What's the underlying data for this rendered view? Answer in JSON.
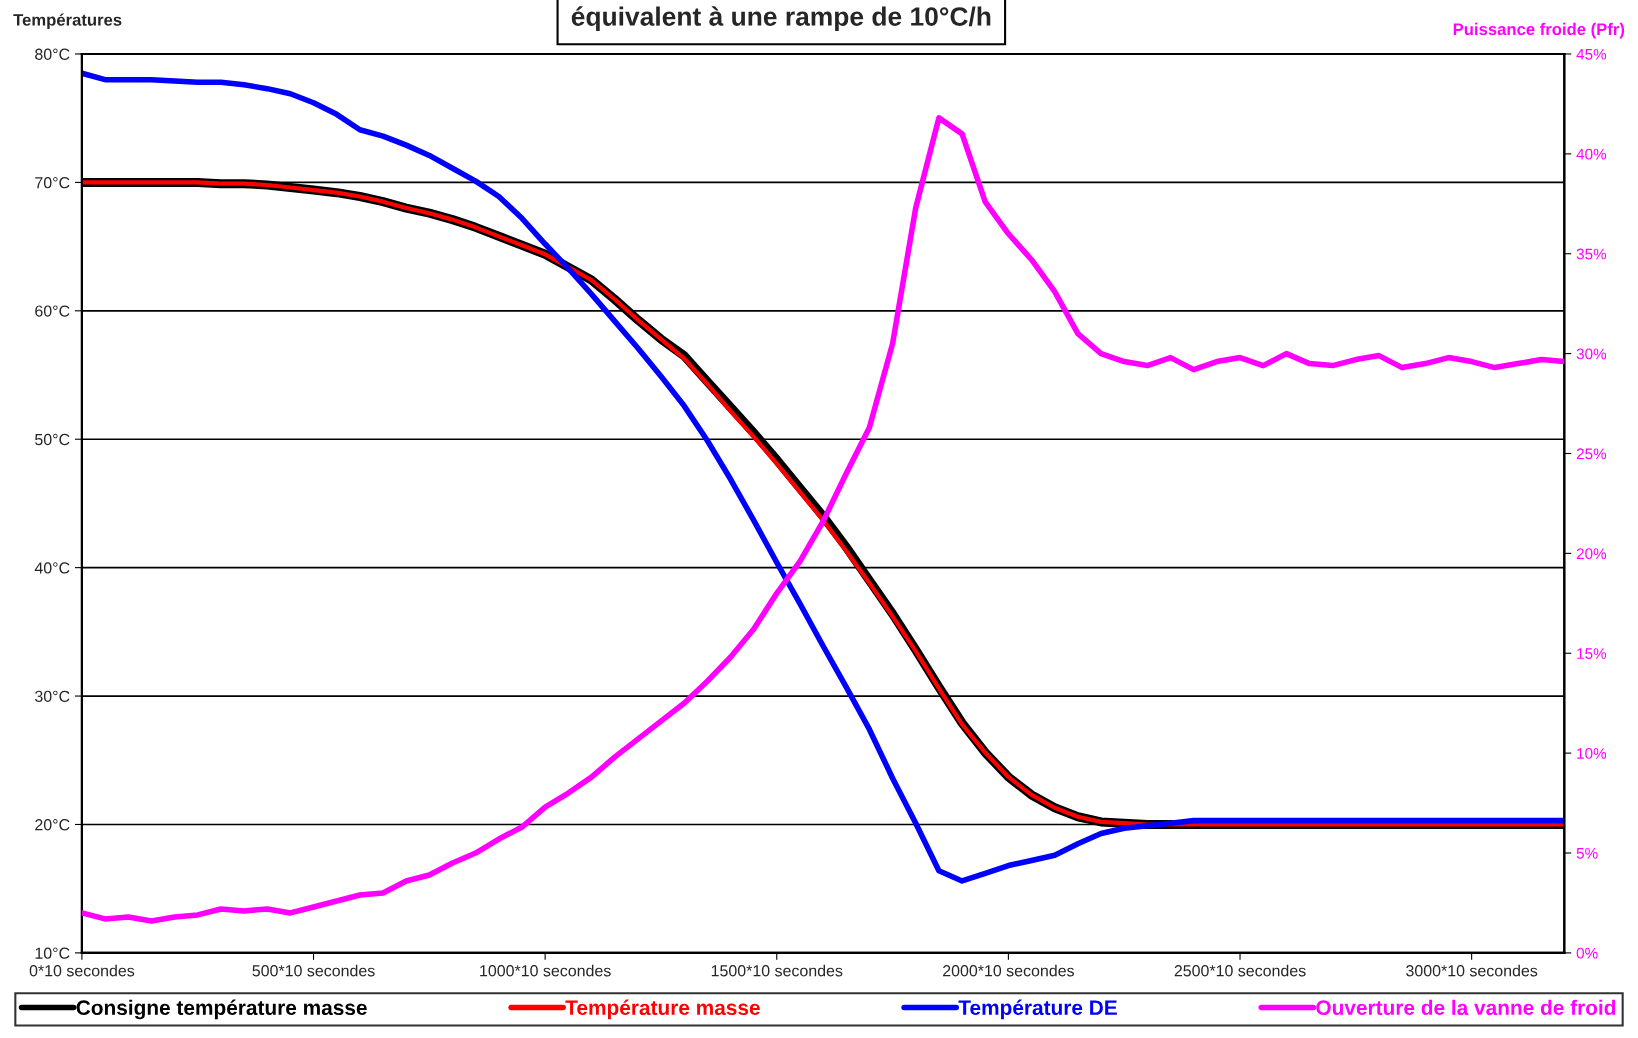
{
  "chart_data": {
    "type": "line",
    "title": "équivalent à une rampe de 10°C/h",
    "ylabel": "Températures",
    "y2label": "Puissance froide (Pfr)",
    "categories": [
      "0*10 secondes",
      null,
      null,
      null,
      null,
      null,
      null,
      null,
      null,
      null,
      "500*10 secondes",
      null,
      null,
      null,
      null,
      null,
      null,
      null,
      null,
      null,
      "1000*10 secondes",
      null,
      null,
      null,
      null,
      null,
      null,
      null,
      null,
      null,
      "1500*10 secondes",
      null,
      null,
      null,
      null,
      null,
      null,
      null,
      null,
      null,
      "2000*10 secondes",
      null,
      null,
      null,
      null,
      null,
      null,
      null,
      null,
      null,
      "2500*10 secondes",
      null,
      null,
      null,
      null,
      null,
      null,
      null,
      null,
      null,
      "3000*10 secondes",
      null,
      null,
      null,
      null
    ],
    "ylim": [
      10,
      80
    ],
    "yticks": [
      {
        "value": 10,
        "label": "10°C"
      },
      {
        "value": 20,
        "label": "20°C"
      },
      {
        "value": 30,
        "label": "30°C"
      },
      {
        "value": 40,
        "label": "40°C"
      },
      {
        "value": 50,
        "label": "50°C"
      },
      {
        "value": 60,
        "label": "60°C"
      },
      {
        "value": 70,
        "label": "70°C"
      },
      {
        "value": 80,
        "label": "80°C"
      }
    ],
    "y2lim": [
      0,
      45
    ],
    "y2ticks": [
      {
        "value": 0,
        "label": "0%"
      },
      {
        "value": 5,
        "label": "5%"
      },
      {
        "value": 10,
        "label": "10%"
      },
      {
        "value": 15,
        "label": "15%"
      },
      {
        "value": 20,
        "label": "20%"
      },
      {
        "value": 25,
        "label": "25%"
      },
      {
        "value": 30,
        "label": "30%"
      },
      {
        "value": 35,
        "label": "35%"
      },
      {
        "value": 40,
        "label": "40%"
      },
      {
        "value": 45,
        "label": "45%"
      }
    ],
    "grid": "y",
    "legend": "bottom",
    "marker": "none",
    "series": [
      {
        "name": "Consigne température masse",
        "color": "#000000",
        "values": [
          70,
          70,
          70,
          70,
          70,
          70,
          69.9,
          69.9,
          69.8,
          69.6,
          69.4,
          69.2,
          68.9,
          68.5,
          68.0,
          67.6,
          67.1,
          66.5,
          65.8,
          65.1,
          64.4,
          63.4,
          62.4,
          60.9,
          59.3,
          57.8,
          56.5,
          54.5,
          52.5,
          50.5,
          48.4,
          46.2,
          44.0,
          41.6,
          39.0,
          36.4,
          33.6,
          30.7,
          27.9,
          25.6,
          23.7,
          22.3,
          21.3,
          20.6,
          20.2,
          20.1,
          20,
          20,
          20,
          20,
          20,
          20,
          20,
          20,
          20,
          20,
          20,
          20,
          20,
          20,
          20,
          20,
          20,
          20,
          20
        ]
      },
      {
        "name": "Température masse",
        "color": "#ff0000",
        "values": [
          70,
          70,
          70,
          70,
          70,
          70,
          69.9,
          69.9,
          69.8,
          69.6,
          69.4,
          69.2,
          68.9,
          68.5,
          68.0,
          67.6,
          67.1,
          66.5,
          65.8,
          65.1,
          64.4,
          63.4,
          62.4,
          60.9,
          59.3,
          57.8,
          56.3,
          54.3,
          52.2,
          50.2,
          48.1,
          45.9,
          43.7,
          41.3,
          38.8,
          36.2,
          33.5,
          30.6,
          27.8,
          25.6,
          23.7,
          22.3,
          21.3,
          20.6,
          20.2,
          20.1,
          20,
          20,
          20,
          20,
          20,
          20,
          20,
          20,
          20,
          20,
          20,
          20,
          20,
          20,
          20,
          20,
          20,
          20,
          20
        ]
      },
      {
        "name": "Température DE",
        "color": "#0000ff",
        "values": [
          78.5,
          78.0,
          78.0,
          78.0,
          77.9,
          77.8,
          77.8,
          77.6,
          77.3,
          76.9,
          76.2,
          75.3,
          74.1,
          73.6,
          72.9,
          72.1,
          71.1,
          70.1,
          68.9,
          67.2,
          65.2,
          63.3,
          61.3,
          59.2,
          57.1,
          54.9,
          52.6,
          49.9,
          46.9,
          43.7,
          40.4,
          37.2,
          33.9,
          30.7,
          27.4,
          23.6,
          20.1,
          16.4,
          15.6,
          16.2,
          16.8,
          17.2,
          17.6,
          18.5,
          19.3,
          19.7,
          19.9,
          20.1,
          20.3,
          20.3,
          20.3,
          20.3,
          20.3,
          20.3,
          20.3,
          20.3,
          20.3,
          20.3,
          20.3,
          20.3,
          20.3,
          20.3,
          20.3,
          20.3,
          20.3
        ]
      },
      {
        "name": "Ouverture de la vanne de froid",
        "color": "#ff00ff",
        "axis": "y2",
        "values": [
          2.0,
          1.7,
          1.8,
          1.6,
          1.8,
          1.9,
          2.2,
          2.1,
          2.2,
          2.0,
          2.3,
          2.6,
          2.9,
          3.0,
          3.6,
          3.9,
          4.5,
          5.0,
          5.7,
          6.3,
          7.3,
          8.0,
          8.8,
          9.8,
          10.7,
          11.6,
          12.5,
          13.6,
          14.8,
          16.2,
          18.0,
          19.6,
          21.6,
          24.0,
          26.3,
          30.5,
          37.3,
          41.8,
          41.0,
          37.6,
          36.0,
          34.7,
          33.1,
          31.0,
          30.0,
          29.6,
          29.4,
          29.8,
          29.2,
          29.6,
          29.8,
          29.4,
          30.0,
          29.5,
          29.4,
          29.7,
          29.9,
          29.3,
          29.5,
          29.8,
          29.6,
          29.3,
          29.5,
          29.7,
          29.6
        ]
      }
    ]
  }
}
